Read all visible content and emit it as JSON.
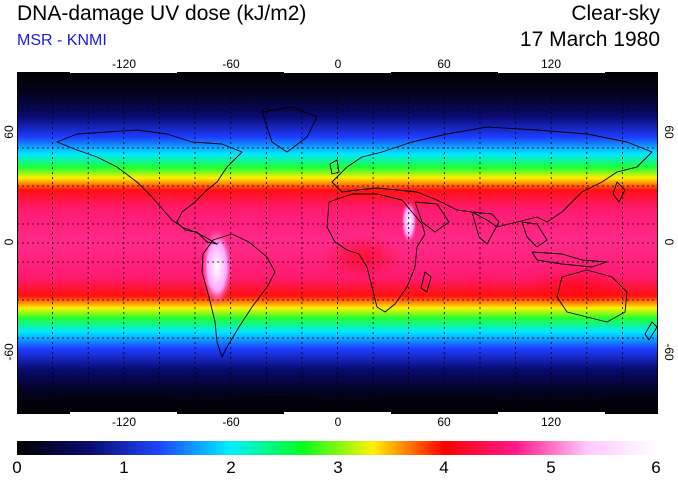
{
  "header": {
    "title": "DNA-damage UV dose (kJ/m2)",
    "subtitle": "MSR - KNMI",
    "condition": "Clear-sky",
    "date": "17 March 1980"
  },
  "map": {
    "projection": "equirectangular",
    "lon_range": [
      -180,
      180
    ],
    "lat_range": [
      -90,
      90
    ],
    "lon_ticks": [
      "-120",
      "-60",
      "0",
      "60",
      "120"
    ],
    "lon_tick_values": [
      -120,
      -60,
      0,
      60,
      120
    ],
    "lat_ticks": [
      "60",
      "0",
      "-60"
    ],
    "lat_tick_values": [
      60,
      0,
      -60
    ],
    "gridlines": "dotted every 20 degrees",
    "coastlines": true
  },
  "colorbar": {
    "min": 0,
    "max": 6,
    "labels": [
      "0",
      "1",
      "2",
      "3",
      "4",
      "5",
      "6"
    ],
    "colors": [
      "#000000",
      "#0a0a6e",
      "#1e46ff",
      "#00f0ff",
      "#00ff20",
      "#fff000",
      "#ff0000",
      "#ff1a8a",
      "#ffc8ff",
      "#ffffff"
    ]
  }
}
